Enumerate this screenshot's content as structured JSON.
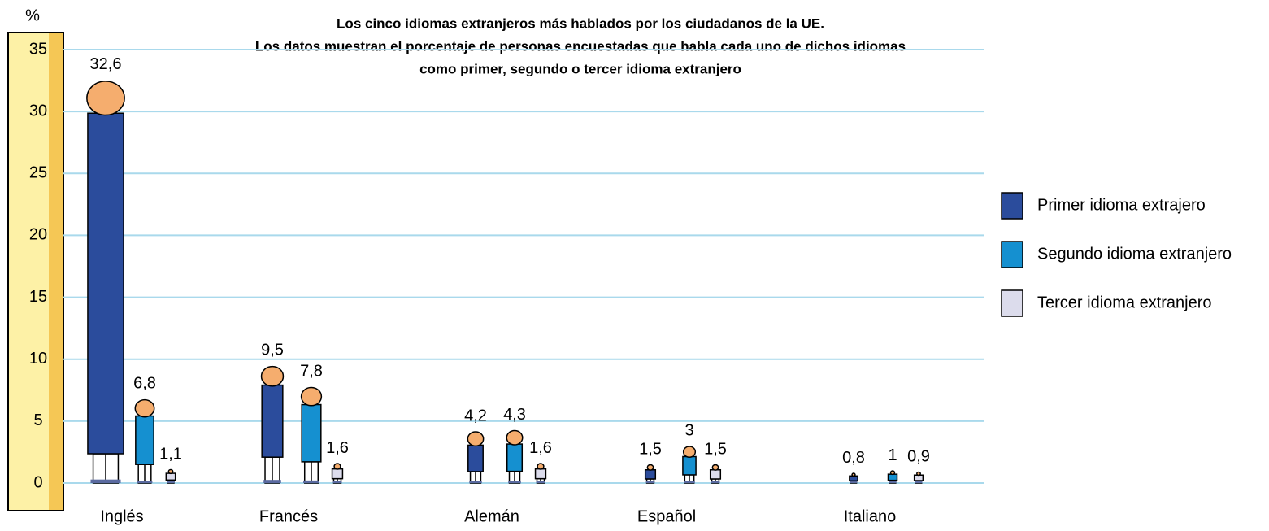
{
  "chart_data": {
    "type": "bar",
    "title": [
      "Los cinco idiomas extranjeros más hablados por los ciudadanos de la UE.",
      "Los datos muestran el porcentaje de personas encuestadas que habla cada uno de dichos idiomas",
      "como primer, segundo o tercer idioma extranjero"
    ],
    "y_label": "%",
    "categories": [
      "Inglés",
      "Francés",
      "Alemán",
      "Español",
      "Italiano"
    ],
    "series": [
      {
        "name": "Primer idioma extrajero",
        "color": "#2b4c9c",
        "values": [
          32.6,
          9.5,
          4.2,
          1.5,
          0.8
        ],
        "value_labels": [
          "32,6",
          "9,5",
          "4,2",
          "1,5",
          "0,8"
        ]
      },
      {
        "name": "Segundo idioma extranjero",
        "color": "#1590d0",
        "values": [
          6.8,
          7.8,
          4.3,
          3,
          1
        ],
        "value_labels": [
          "6,8",
          "7,8",
          "4,3",
          "3",
          "1"
        ]
      },
      {
        "name": "Tercer idioma extranjero",
        "color": "#dcdcec",
        "values": [
          1.1,
          1.6,
          1.6,
          1.5,
          0.9
        ],
        "value_labels": [
          "1,1",
          "1,6",
          "1,6",
          "1,5",
          "0,9"
        ]
      }
    ],
    "ylim": [
      0,
      35
    ],
    "yticks": [
      0,
      5,
      10,
      15,
      20,
      25,
      30,
      35
    ],
    "grid": true,
    "legend": "right"
  }
}
